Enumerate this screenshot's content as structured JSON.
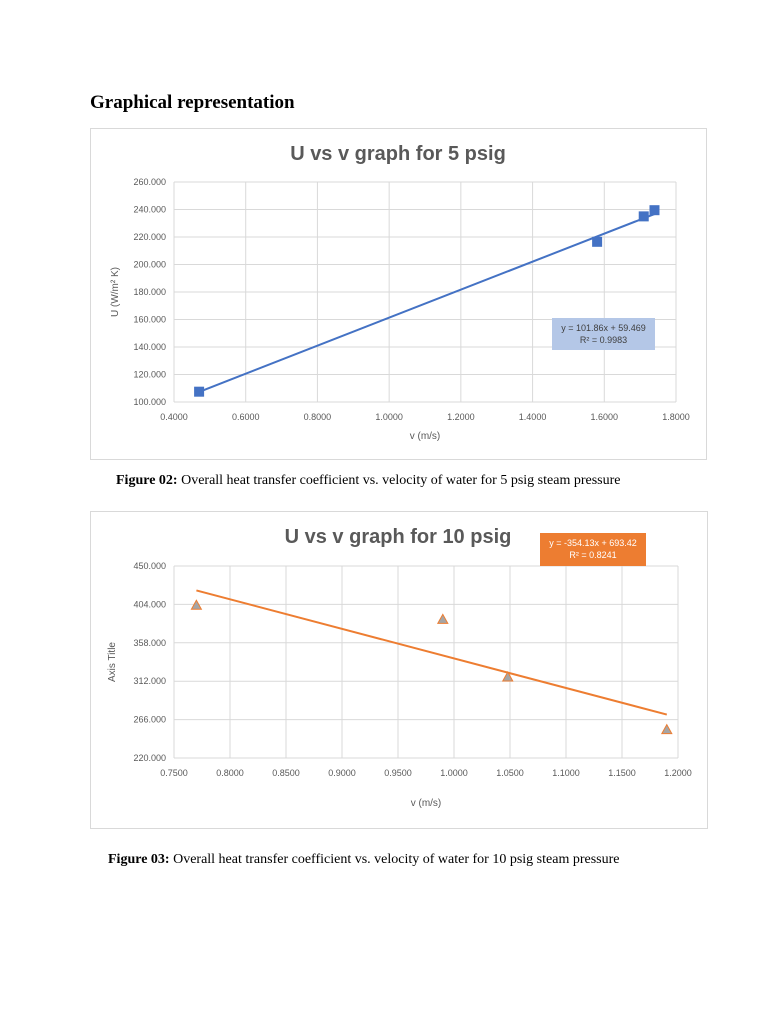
{
  "heading": "Graphical representation",
  "captions": [
    {
      "label": "Figure 02:",
      "text": " Overall heat transfer coefficient vs. velocity of water for 5 psig steam pressure"
    },
    {
      "label": "Figure 03:",
      "text": " Overall heat transfer coefficient vs. velocity of water for 10 psig steam pressure"
    }
  ],
  "chart_data": [
    {
      "type": "scatter",
      "title": "U vs v graph for 5 psig",
      "xlabel": "v (m/s)",
      "ylabel": "U (W/m² K)",
      "xlim": [
        0.4,
        1.8
      ],
      "ylim": [
        100,
        260
      ],
      "xticks": [
        "0.4000",
        "0.6000",
        "0.8000",
        "1.0000",
        "1.2000",
        "1.4000",
        "1.6000",
        "1.8000"
      ],
      "yticks": [
        "100.000",
        "120.000",
        "140.000",
        "160.000",
        "180.000",
        "200.000",
        "220.000",
        "240.000",
        "260.000"
      ],
      "grid": true,
      "marker": "square",
      "series": [
        {
          "x": [
            0.47,
            1.58,
            1.71,
            1.74
          ],
          "y": [
            107.5,
            216.5,
            235.0,
            239.5
          ]
        }
      ],
      "trendline": {
        "slope": 101.86,
        "intercept": 59.469,
        "x_range": [
          0.47,
          1.74
        ],
        "equation": "y = 101.86x + 59.469",
        "r2": "R² = 0.9983"
      },
      "colors": {
        "series": "#4472c4",
        "trend": "#4472c4",
        "label_bg": "#b4c7e7"
      }
    },
    {
      "type": "scatter",
      "title": "U vs v graph for 10 psig",
      "xlabel": "v (m/s)",
      "ylabel": "Axis Title",
      "xlim": [
        0.75,
        1.2
      ],
      "ylim": [
        220,
        450
      ],
      "xticks": [
        "0.7500",
        "0.8000",
        "0.8500",
        "0.9000",
        "0.9500",
        "1.0000",
        "1.0500",
        "1.1000",
        "1.1500",
        "1.2000"
      ],
      "yticks": [
        "220.000",
        "266.000",
        "312.000",
        "358.000",
        "404.000",
        "450.000"
      ],
      "grid": true,
      "marker": "triangle",
      "series": [
        {
          "x": [
            0.77,
            0.99,
            1.048,
            1.19
          ],
          "y": [
            403,
            386,
            317,
            254
          ]
        }
      ],
      "trendline": {
        "slope": -354.13,
        "intercept": 693.42,
        "x_range": [
          0.77,
          1.19
        ],
        "equation": "y = -354.13x + 693.42",
        "r2": "R² = 0.8241"
      },
      "colors": {
        "series": "#a5a5a5",
        "series_stroke": "#ed7d31",
        "trend": "#ed7d31",
        "label_bg": "#ed7d31",
        "label_text": "#ffffff"
      }
    }
  ]
}
